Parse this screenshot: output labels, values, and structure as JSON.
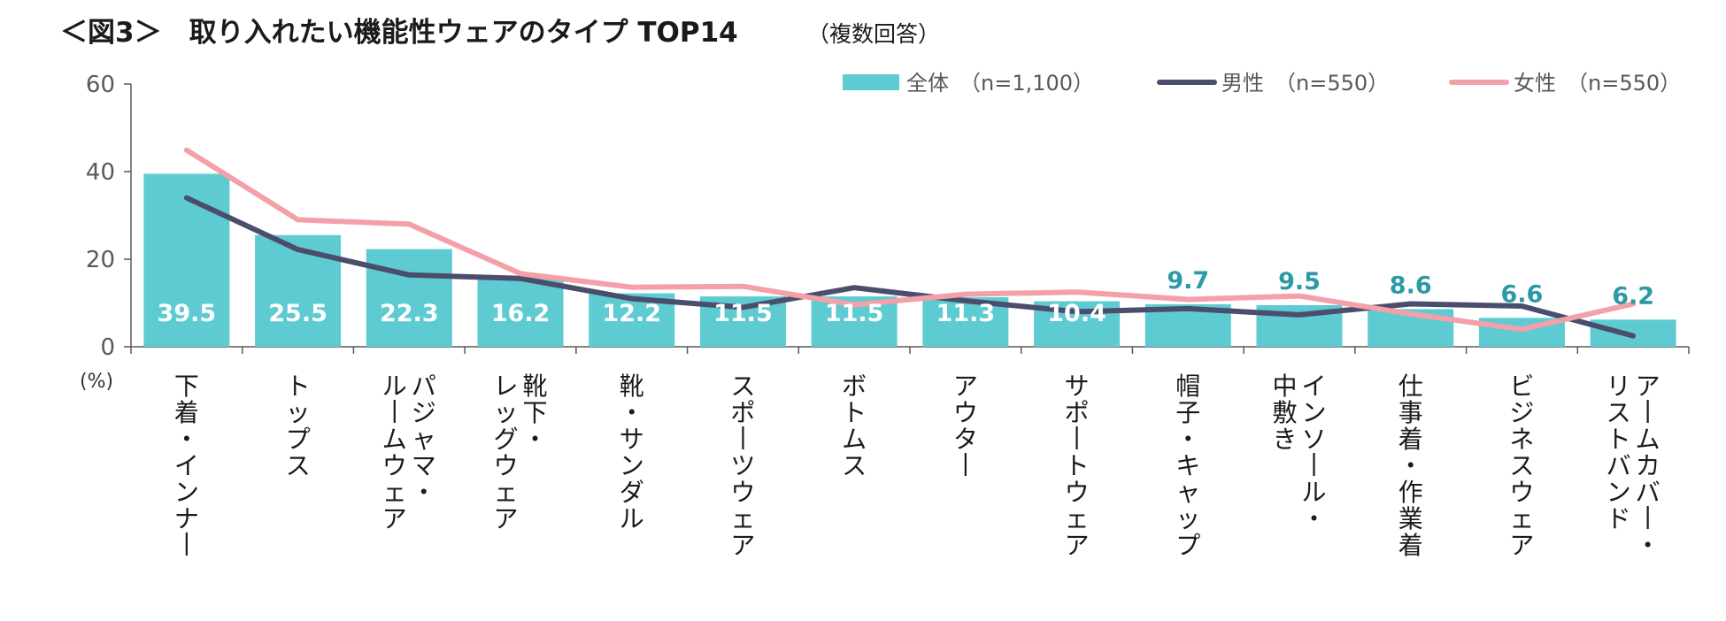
{
  "title": {
    "main": "＜図3＞　取り入れたい機能性ウェアのタイプ TOP14",
    "sub": "（複数回答）"
  },
  "colors": {
    "bar": "#5ecad2",
    "male": "#4b4d6d",
    "female": "#f4a0a9",
    "label_outside": "#2a9aa5",
    "axis": "#595959"
  },
  "chart_data": {
    "type": "bar",
    "title": "＜図3＞　取り入れたい機能性ウェアのタイプ TOP14（複数回答）",
    "ylabel": "(%)",
    "ylim": [
      0,
      60
    ],
    "yticks": [
      0,
      20,
      40,
      60
    ],
    "categories": [
      [
        "下着・インナー"
      ],
      [
        "トップス"
      ],
      [
        "パジャマ・",
        "ルームウェア"
      ],
      [
        "靴下・",
        "レッグウェア"
      ],
      [
        "靴・サンダル"
      ],
      [
        "スポーツウェア"
      ],
      [
        "ボトムス"
      ],
      [
        "アウター"
      ],
      [
        "サポートウェア"
      ],
      [
        "帽子・キャップ"
      ],
      [
        "インソール・",
        "中敷き"
      ],
      [
        "仕事着・作業着"
      ],
      [
        "ビジネスウェア"
      ],
      [
        "アームカバー・",
        "リストバンド"
      ]
    ],
    "series": [
      {
        "name": "全体",
        "legend": "全体　（n=1,100）",
        "type": "bar",
        "values": [
          39.5,
          25.5,
          22.3,
          16.2,
          12.2,
          11.5,
          11.5,
          11.3,
          10.4,
          9.7,
          9.5,
          8.6,
          6.6,
          6.2
        ],
        "labels": [
          "39.5",
          "25.5",
          "22.3",
          "16.2",
          "12.2",
          "11.5",
          "11.5",
          "11.3",
          "10.4",
          "9.7",
          "9.5",
          "8.6",
          "6.6",
          "6.2"
        ]
      },
      {
        "name": "男性",
        "legend": "男性　（n=550）",
        "type": "line",
        "values": [
          34.0,
          22.2,
          16.4,
          15.6,
          11.0,
          9.0,
          13.5,
          10.5,
          8.0,
          8.7,
          7.3,
          9.8,
          9.3,
          2.5
        ]
      },
      {
        "name": "女性",
        "legend": "女性　（n=550）",
        "type": "line",
        "values": [
          44.9,
          29.0,
          28.0,
          16.7,
          13.6,
          13.8,
          9.6,
          12.0,
          12.5,
          10.8,
          11.6,
          7.5,
          4.0,
          9.8
        ]
      }
    ]
  }
}
